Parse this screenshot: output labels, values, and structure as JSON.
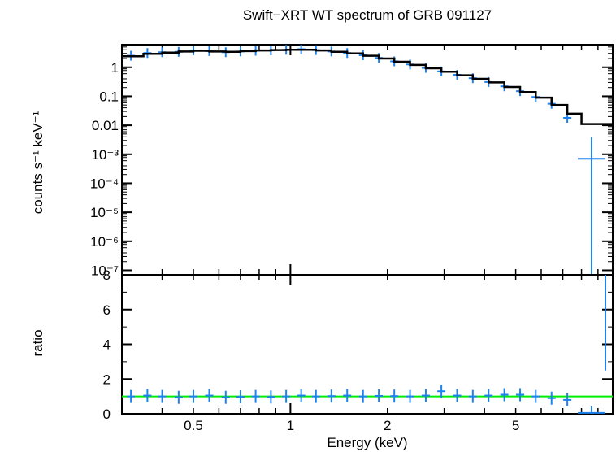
{
  "chart_data": [
    {
      "panel": "spectrum",
      "type": "scatter",
      "title": "Swift−XRT WT spectrum of GRB 091127",
      "xlabel": "",
      "ylabel": "counts s⁻¹ keV⁻¹",
      "xscale": "log",
      "yscale": "log",
      "xlim": [
        0.3,
        10.0
      ],
      "ylim": [
        7e-08,
        6
      ],
      "ytick_labels": [
        "1",
        "0.1",
        "0.01",
        "10⁻³",
        "10⁻⁴",
        "10⁻⁵",
        "10⁻⁶",
        "10⁻⁷"
      ],
      "series": [
        {
          "kind": "data",
          "color": "#1e82ee",
          "x": [
            0.32,
            0.36,
            0.4,
            0.45,
            0.5,
            0.56,
            0.63,
            0.7,
            0.78,
            0.87,
            0.97,
            1.08,
            1.2,
            1.34,
            1.5,
            1.68,
            1.88,
            2.1,
            2.35,
            2.63,
            2.94,
            3.29,
            3.68,
            4.12,
            4.61,
            5.16,
            5.77,
            6.46,
            7.23,
            8.6
          ],
          "y": [
            2.5,
            3.1,
            3.3,
            3.4,
            3.8,
            3.6,
            3.3,
            3.5,
            3.7,
            3.8,
            4.0,
            4.2,
            3.9,
            3.5,
            3.1,
            2.6,
            2.1,
            1.6,
            1.25,
            0.95,
            0.72,
            0.55,
            0.42,
            0.31,
            0.22,
            0.15,
            0.095,
            0.055,
            0.018,
            0.0007
          ]
        },
        {
          "kind": "model",
          "color": "#000000",
          "x": [
            0.3,
            0.35,
            0.4,
            0.45,
            0.5,
            0.56,
            0.63,
            0.7,
            0.78,
            0.87,
            0.97,
            1.08,
            1.2,
            1.34,
            1.5,
            1.68,
            1.88,
            2.1,
            2.35,
            2.63,
            2.94,
            3.29,
            3.68,
            4.12,
            4.61,
            5.16,
            5.77,
            6.46,
            7.23,
            8.0,
            10.0
          ],
          "y": [
            2.4,
            2.9,
            3.2,
            3.5,
            3.7,
            3.5,
            3.4,
            3.6,
            3.8,
            3.9,
            4.0,
            4.0,
            3.8,
            3.4,
            3.0,
            2.5,
            2.0,
            1.55,
            1.2,
            0.92,
            0.7,
            0.53,
            0.4,
            0.3,
            0.21,
            0.14,
            0.09,
            0.05,
            0.025,
            0.011,
            0.011
          ]
        }
      ]
    },
    {
      "panel": "ratio",
      "type": "scatter",
      "xlabel": "Energy (keV)",
      "ylabel": "ratio",
      "xscale": "log",
      "xlim": [
        0.3,
        10.0
      ],
      "ylim": [
        0,
        8
      ],
      "xtick_labels": [
        "0.5",
        "1",
        "2",
        "5"
      ],
      "ytick_labels": [
        "0",
        "2",
        "4",
        "6",
        "8"
      ],
      "reference_line": {
        "y": 1,
        "color": "#00ee00"
      },
      "series": [
        {
          "kind": "ratio",
          "color": "#1e82ee",
          "x": [
            0.32,
            0.36,
            0.4,
            0.45,
            0.5,
            0.56,
            0.63,
            0.7,
            0.78,
            0.87,
            0.97,
            1.08,
            1.2,
            1.34,
            1.5,
            1.68,
            1.88,
            2.1,
            2.35,
            2.63,
            2.94,
            3.29,
            3.68,
            4.12,
            4.61,
            5.16,
            5.77,
            6.46,
            7.23,
            8.6
          ],
          "y": [
            1.0,
            1.05,
            1.0,
            0.95,
            1.0,
            1.05,
            0.95,
            0.98,
            1.0,
            0.97,
            1.0,
            1.05,
            1.0,
            1.02,
            1.05,
            1.0,
            1.03,
            1.02,
            1.0,
            1.05,
            1.3,
            1.05,
            1.0,
            1.05,
            1.1,
            1.1,
            1.0,
            0.9,
            0.8,
            0.05
          ]
        }
      ]
    }
  ]
}
